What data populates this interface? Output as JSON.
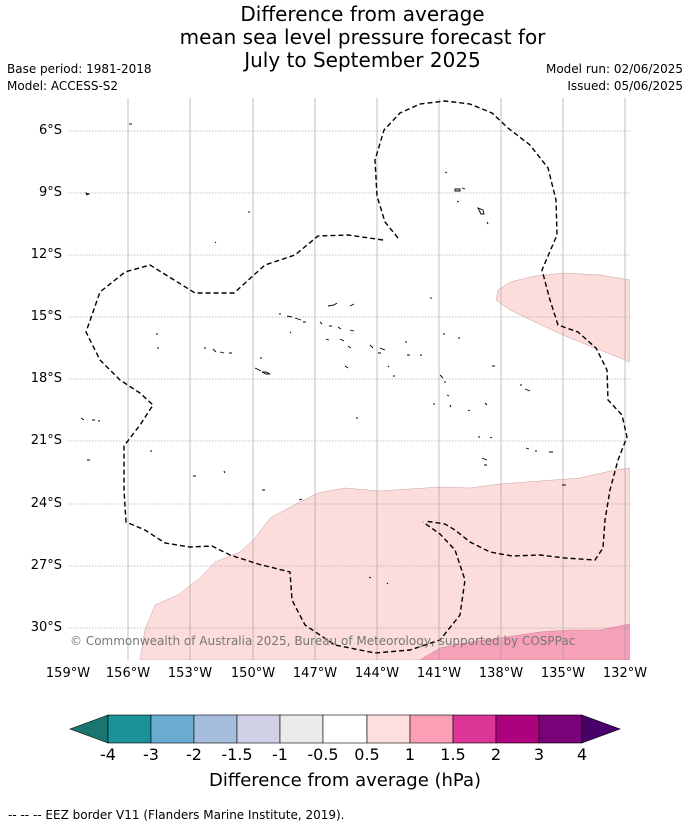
{
  "header": {
    "title_lines": [
      "Difference from average",
      "mean sea level pressure forecast for",
      "July to September 2025"
    ],
    "base_period": "Base period: 1981-2018",
    "model": "Model: ACCESS-S2",
    "model_run": "Model run: 02/06/2025",
    "issued": "Issued: 05/06/2025"
  },
  "map": {
    "lat_ticks": [
      "6°S",
      "9°S",
      "12°S",
      "15°S",
      "18°S",
      "21°S",
      "24°S",
      "27°S",
      "30°S"
    ],
    "lon_ticks": [
      "159°W",
      "156°W",
      "153°W",
      "150°W",
      "147°W",
      "144°W",
      "141°W",
      "138°W",
      "135°W",
      "132°W"
    ],
    "copyright": "© Commonwealth of Australia 2025, Bureau of Meteorology, supported by COSPPac",
    "colors": {
      "light_pink": "#fddcdc",
      "mid_pink": "#f7a1b9",
      "grid": "#999999",
      "eez": "#000000"
    }
  },
  "colorbar": {
    "ticks": [
      "-4",
      "-3",
      "-2",
      "-1.5",
      "-1",
      "-0.5",
      "0.5",
      "1",
      "1.5",
      "2",
      "3",
      "4"
    ],
    "colors": [
      "#1a7470",
      "#1b9198",
      "#6aabd2",
      "#a6bddb",
      "#d0d1e6",
      "#ebebeb",
      "#ffffff",
      "#fde0dd",
      "#fa9fb5",
      "#dd3497",
      "#ae017e",
      "#7a0177",
      "#49006a"
    ],
    "label": "Difference from average (hPa)"
  },
  "footer": "--  --  -- EEZ border V11 (Flanders Marine Institute, 2019)."
}
